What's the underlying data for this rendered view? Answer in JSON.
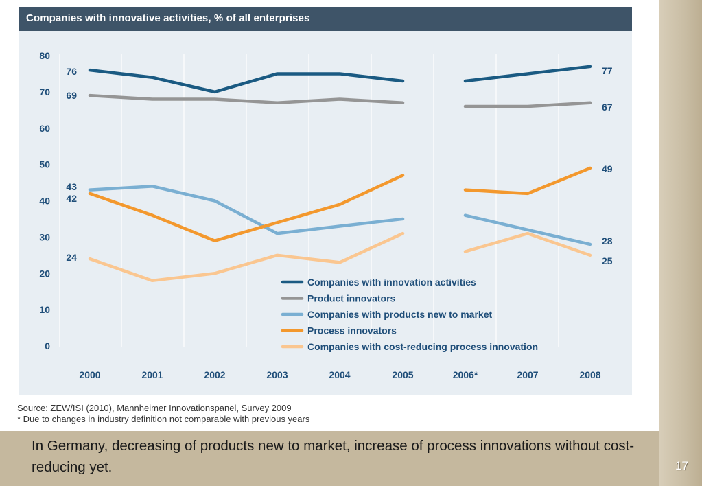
{
  "slide": {
    "caption": "In Germany, decreasing of products new to market, increase of process innovations without cost-reducing yet.",
    "page_number": "17"
  },
  "source": {
    "line1": "Source:  ZEW/ISI (2010), Mannheimer Innovationspanel, Survey 2009",
    "line2": "* Due to changes in industry definition not comparable with previous years"
  },
  "chart_data": {
    "type": "line",
    "title": "Companies with innovative activities, % of all enterprises",
    "categories": [
      "2000",
      "2001",
      "2002",
      "2003",
      "2004",
      "2005",
      "2006*",
      "2007",
      "2008"
    ],
    "ylim": [
      0,
      80
    ],
    "yticks": [
      0,
      10,
      20,
      30,
      40,
      50,
      60,
      70,
      80
    ],
    "grid": "vertical",
    "legend_position": "bottom-center",
    "series": [
      {
        "name": "Companies with innovation activities",
        "color": "#1a5a82",
        "values": [
          76,
          74,
          70,
          75,
          75,
          73,
          73,
          75,
          77
        ]
      },
      {
        "name": "Product innovators",
        "color": "#959595",
        "values": [
          69,
          68,
          68,
          67,
          68,
          67,
          66,
          66,
          67
        ]
      },
      {
        "name": "Companies with products new to market",
        "color": "#7aafd2",
        "values": [
          43,
          44,
          40,
          31,
          33,
          35,
          36,
          32,
          28
        ]
      },
      {
        "name": "Process innovators",
        "color": "#f3982d",
        "values": [
          42,
          36,
          29,
          34,
          39,
          47,
          43,
          42,
          49
        ]
      },
      {
        "name": "Companies with cost-reducing process innovation",
        "color": "#fac690",
        "values": [
          24,
          18,
          20,
          25,
          23,
          31,
          26,
          31,
          25
        ]
      }
    ],
    "start_labels": [
      {
        "series": 0,
        "text": "76"
      },
      {
        "series": 1,
        "text": "69"
      },
      {
        "series": 2,
        "text": "43"
      },
      {
        "series": 3,
        "text": "42"
      },
      {
        "series": 4,
        "text": "24"
      }
    ],
    "end_labels": [
      {
        "series": 0,
        "text": "77"
      },
      {
        "series": 1,
        "text": "67"
      },
      {
        "series": 3,
        "text": "49"
      },
      {
        "series": 2,
        "text": "28"
      },
      {
        "series": 4,
        "text": "25"
      }
    ]
  }
}
